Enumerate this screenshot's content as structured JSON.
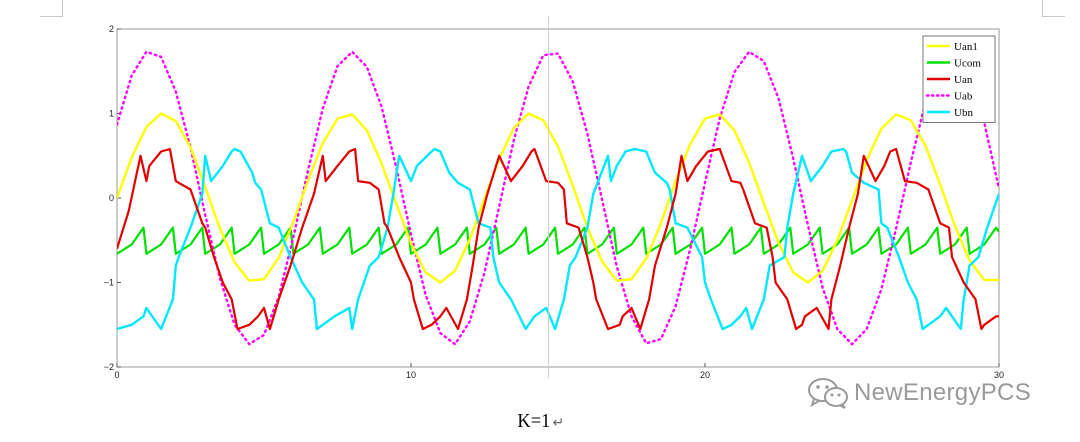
{
  "caption": {
    "text": "K=1",
    "mark": "↵"
  },
  "watermark": {
    "text": "NewEnergyPCS",
    "icon": "wechat-icon"
  },
  "chart_data": {
    "type": "line",
    "title": "",
    "xlabel": "",
    "ylabel": "",
    "xlim": [
      0,
      30
    ],
    "ylim": [
      -2,
      2
    ],
    "x_ticks": [
      0,
      10,
      20,
      30
    ],
    "y_ticks": [
      -2,
      -1,
      0,
      1,
      2
    ],
    "grid": false,
    "legend_position": "top-right",
    "series": [
      {
        "name": "Uan1",
        "color": "#ffff00",
        "style": "solid",
        "width": 2.4,
        "x": [
          0,
          0.5,
          1,
          1.5,
          2,
          2.5,
          3,
          3.5,
          4,
          4.5,
          5,
          5.5,
          6,
          6.5,
          7,
          7.5,
          8,
          8.5,
          9,
          9.5,
          10,
          10.5,
          11,
          11.5,
          12,
          12.5,
          13,
          13.5,
          14,
          14.5,
          15,
          15.5,
          16,
          16.5,
          17,
          17.5,
          18,
          18.5,
          19,
          19.5,
          20,
          20.5,
          21,
          21.5,
          22,
          22.5,
          23,
          23.5,
          24,
          24.5,
          25,
          25.5,
          26,
          26.5,
          27,
          27.5,
          28,
          28.5,
          29,
          29.5,
          30
        ],
        "y": [
          0.0,
          0.48,
          0.84,
          1.0,
          0.91,
          0.6,
          0.13,
          -0.36,
          -0.76,
          -0.98,
          -0.96,
          -0.71,
          -0.28,
          0.21,
          0.65,
          0.94,
          0.99,
          0.8,
          0.41,
          -0.07,
          -0.54,
          -0.88,
          -1.0,
          -0.86,
          -0.49,
          -0.01,
          0.46,
          0.83,
          1.0,
          0.92,
          0.61,
          0.15,
          -0.35,
          -0.75,
          -0.98,
          -0.96,
          -0.72,
          -0.3,
          0.2,
          0.64,
          0.94,
          0.99,
          0.8,
          0.42,
          -0.06,
          -0.53,
          -0.88,
          -1.0,
          -0.86,
          -0.5,
          -0.03,
          0.45,
          0.82,
          0.99,
          0.92,
          0.62,
          0.16,
          -0.33,
          -0.74,
          -0.97,
          -0.97
        ]
      },
      {
        "name": "Ucom",
        "color": "#00e000",
        "style": "solid",
        "width": 2.2,
        "x": [
          0,
          0.5,
          0.9,
          1.0,
          1.5,
          1.9,
          2.0,
          2.5,
          2.9,
          3.0,
          3.5,
          3.9,
          4.0,
          4.5,
          4.9,
          5.0,
          5.5,
          5.9,
          6.0,
          6.5,
          6.9,
          7.0,
          7.5,
          7.9,
          8.0,
          8.5,
          8.9,
          9.0,
          9.5,
          9.9,
          10.0,
          10.5,
          10.9,
          11.0,
          11.5,
          11.9,
          12.0,
          12.5,
          12.9,
          13.0,
          13.5,
          13.9,
          14.0,
          14.5,
          14.9,
          15.0,
          15.5,
          15.9,
          16.0,
          16.5,
          16.9,
          17.0,
          17.5,
          17.9,
          18.0,
          18.5,
          18.9,
          19.0,
          19.5,
          19.9,
          20.0,
          20.5,
          20.9,
          21.0,
          21.5,
          21.9,
          22.0,
          22.5,
          22.9,
          23.0,
          23.5,
          23.9,
          24.0,
          24.5,
          24.9,
          25.0,
          25.5,
          25.9,
          26.0,
          26.5,
          26.9,
          27.0,
          27.5,
          27.9,
          28.0,
          28.5,
          28.9,
          29.0,
          29.5,
          29.9,
          30.0
        ],
        "y": [
          -0.66,
          -0.55,
          -0.35,
          -0.66,
          -0.55,
          -0.35,
          -0.66,
          -0.55,
          -0.35,
          -0.66,
          -0.55,
          -0.35,
          -0.66,
          -0.55,
          -0.35,
          -0.66,
          -0.55,
          -0.35,
          -0.66,
          -0.55,
          -0.35,
          -0.66,
          -0.55,
          -0.35,
          -0.66,
          -0.55,
          -0.35,
          -0.66,
          -0.55,
          -0.35,
          -0.66,
          -0.55,
          -0.35,
          -0.66,
          -0.55,
          -0.35,
          -0.66,
          -0.55,
          -0.35,
          -0.66,
          -0.55,
          -0.35,
          -0.66,
          -0.55,
          -0.35,
          -0.66,
          -0.55,
          -0.35,
          -0.66,
          -0.55,
          -0.35,
          -0.66,
          -0.55,
          -0.35,
          -0.66,
          -0.55,
          -0.35,
          -0.66,
          -0.55,
          -0.35,
          -0.66,
          -0.55,
          -0.35,
          -0.66,
          -0.55,
          -0.35,
          -0.66,
          -0.55,
          -0.35,
          -0.66,
          -0.55,
          -0.35,
          -0.66,
          -0.55,
          -0.35,
          -0.66,
          -0.55,
          -0.35,
          -0.66,
          -0.55,
          -0.35,
          -0.66,
          -0.55,
          -0.35,
          -0.66,
          -0.55,
          -0.35,
          -0.66,
          -0.55,
          -0.35,
          -0.4
        ]
      },
      {
        "name": "Uan",
        "color": "#e00000",
        "style": "solid",
        "width": 2.2,
        "x": [
          0,
          0.4,
          0.8,
          1.0,
          1.1,
          1.5,
          1.8,
          2.0,
          2.1,
          2.5,
          2.9,
          3.0,
          3.3,
          3.6,
          3.9,
          4.1,
          4.5,
          4.8,
          5.0,
          5.2,
          5.5,
          5.9,
          6.3,
          6.7,
          7.0,
          7.1,
          7.5,
          7.9,
          8.1,
          8.2,
          8.6,
          8.9,
          9.1,
          9.2,
          9.6,
          10.0,
          10.1,
          10.4,
          10.7,
          11.0,
          11.2,
          11.6,
          11.9,
          12.1,
          12.3,
          12.6,
          13.0,
          13.4,
          13.8,
          14.1,
          14.2,
          14.6,
          15.0,
          15.2,
          15.3,
          15.7,
          16.0,
          16.2,
          16.3,
          16.7,
          17.1,
          17.2,
          17.5,
          17.8,
          18.1,
          18.3,
          18.7,
          19.0,
          19.2,
          19.4,
          19.7,
          20.1,
          20.5,
          20.9,
          21.2,
          21.3,
          21.7,
          22.1,
          22.3,
          22.4,
          22.8,
          23.1,
          23.3,
          23.4,
          23.8,
          24.2,
          24.3,
          24.6,
          24.9,
          25.2,
          25.4,
          25.8,
          26.1,
          26.3,
          26.5,
          26.8,
          27.2,
          27.6,
          28.0,
          28.3,
          28.4,
          28.8,
          29.2,
          29.4,
          29.5,
          29.9,
          30.0
        ],
        "y": [
          -0.6,
          -0.15,
          0.5,
          0.2,
          0.38,
          0.55,
          0.58,
          0.2,
          0.18,
          0.1,
          -0.3,
          -0.35,
          -0.7,
          -1.0,
          -1.2,
          -1.55,
          -1.5,
          -1.4,
          -1.3,
          -1.55,
          -1.2,
          -0.8,
          -0.35,
          0.05,
          0.5,
          0.2,
          0.38,
          0.55,
          0.58,
          0.2,
          0.18,
          0.1,
          -0.3,
          -0.35,
          -0.7,
          -1.0,
          -1.2,
          -1.55,
          -1.5,
          -1.4,
          -1.3,
          -1.55,
          -1.2,
          -0.8,
          -0.35,
          0.05,
          0.5,
          0.2,
          0.38,
          0.55,
          0.58,
          0.2,
          0.18,
          0.1,
          -0.3,
          -0.35,
          -0.7,
          -1.0,
          -1.2,
          -1.55,
          -1.5,
          -1.4,
          -1.3,
          -1.55,
          -1.2,
          -0.8,
          -0.35,
          0.05,
          0.5,
          0.2,
          0.38,
          0.55,
          0.58,
          0.2,
          0.18,
          0.1,
          -0.3,
          -0.35,
          -0.7,
          -1.0,
          -1.2,
          -1.55,
          -1.5,
          -1.4,
          -1.3,
          -1.55,
          -1.2,
          -0.8,
          -0.35,
          0.05,
          0.5,
          0.2,
          0.38,
          0.55,
          0.58,
          0.2,
          0.18,
          0.1,
          -0.3,
          -0.35,
          -0.7,
          -1.0,
          -1.2,
          -1.55,
          -1.5,
          -1.4,
          -1.4
        ]
      },
      {
        "name": "Uab",
        "color": "#ff00ff",
        "style": "dotted",
        "width": 2.4,
        "x": [
          0,
          0.5,
          1,
          1.5,
          2,
          2.5,
          3,
          3.5,
          4,
          4.5,
          5,
          5.5,
          6,
          6.5,
          7,
          7.5,
          8,
          8.5,
          9,
          9.5,
          10,
          10.5,
          11,
          11.5,
          12,
          12.5,
          13,
          13.5,
          14,
          14.5,
          15,
          15.5,
          16,
          16.5,
          17,
          17.5,
          18,
          18.5,
          19,
          19.5,
          20,
          20.5,
          21,
          21.5,
          22,
          22.5,
          23,
          23.5,
          24,
          24.5,
          25,
          25.5,
          26,
          26.5,
          27,
          27.5,
          28,
          28.5,
          29,
          29.5,
          30
        ],
        "y": [
          0.87,
          1.45,
          1.73,
          1.67,
          1.26,
          0.6,
          -0.2,
          -0.95,
          -1.5,
          -1.73,
          -1.62,
          -1.17,
          -0.46,
          0.33,
          1.06,
          1.56,
          1.73,
          1.55,
          1.08,
          0.36,
          -0.43,
          -1.15,
          -1.6,
          -1.73,
          -1.46,
          -0.88,
          -0.1,
          0.69,
          1.32,
          1.69,
          1.71,
          1.38,
          0.76,
          -0.02,
          -0.81,
          -1.4,
          -1.72,
          -1.67,
          -1.28,
          -0.6,
          0.18,
          0.94,
          1.49,
          1.73,
          1.62,
          1.18,
          0.47,
          -0.32,
          -1.06,
          -1.55,
          -1.73,
          -1.55,
          -1.08,
          -0.36,
          0.42,
          1.14,
          1.6,
          1.73,
          1.47,
          0.89,
          0.11
        ]
      },
      {
        "name": "Ubn",
        "color": "#00e8ff",
        "style": "solid",
        "width": 2.4,
        "x": [
          0,
          0.5,
          0.9,
          1.0,
          1.5,
          1.9,
          2.0,
          2.1,
          2.5,
          2.9,
          3.0,
          3.2,
          3.6,
          3.9,
          4.0,
          4.2,
          4.6,
          4.7,
          4.9,
          5.2,
          5.5,
          5.9,
          6.3,
          6.7,
          6.8,
          7.0,
          7.4,
          7.9,
          8.0,
          8.2,
          8.6,
          8.9,
          9.2,
          9.4,
          9.6,
          10.0,
          10.2,
          10.7,
          10.8,
          11.0,
          11.3,
          11.6,
          12.0,
          12.3,
          12.7,
          12.8,
          13.0,
          13.4,
          13.9,
          14.0,
          14.2,
          14.6,
          14.9,
          15.2,
          15.4,
          15.6,
          16.0,
          16.2,
          16.7,
          16.8,
          17.0,
          17.3,
          17.6,
          18.0,
          18.3,
          18.7,
          18.8,
          19.0,
          19.4,
          19.9,
          20.0,
          20.2,
          20.6,
          20.9,
          21.2,
          21.4,
          21.6,
          22.0,
          22.2,
          22.7,
          22.8,
          23.0,
          23.3,
          23.6,
          24.0,
          24.3,
          24.7,
          24.8,
          25.0,
          25.4,
          25.9,
          26.0,
          26.2,
          26.6,
          26.9,
          27.2,
          27.4,
          27.6,
          28.0,
          28.2,
          28.7,
          28.8,
          29.0,
          29.3,
          29.6,
          30.0
        ],
        "y": [
          -1.55,
          -1.5,
          -1.4,
          -1.3,
          -1.55,
          -1.2,
          -0.8,
          -0.7,
          -0.35,
          0.05,
          0.5,
          0.2,
          0.38,
          0.55,
          0.58,
          0.55,
          0.3,
          0.18,
          0.1,
          -0.3,
          -0.35,
          -0.7,
          -1.0,
          -1.2,
          -1.55,
          -1.5,
          -1.4,
          -1.3,
          -1.55,
          -1.2,
          -0.8,
          -0.7,
          -0.35,
          0.05,
          0.5,
          0.2,
          0.38,
          0.55,
          0.58,
          0.55,
          0.3,
          0.18,
          0.1,
          -0.3,
          -0.35,
          -0.7,
          -1.0,
          -1.2,
          -1.55,
          -1.5,
          -1.4,
          -1.3,
          -1.55,
          -1.2,
          -0.8,
          -0.7,
          -0.35,
          0.05,
          0.5,
          0.2,
          0.38,
          0.55,
          0.58,
          0.55,
          0.3,
          0.18,
          0.1,
          -0.3,
          -0.35,
          -0.7,
          -1.0,
          -1.2,
          -1.55,
          -1.5,
          -1.4,
          -1.3,
          -1.55,
          -1.2,
          -0.8,
          -0.7,
          -0.35,
          0.05,
          0.5,
          0.2,
          0.38,
          0.55,
          0.58,
          0.55,
          0.3,
          0.18,
          0.1,
          -0.3,
          -0.35,
          -0.7,
          -1.0,
          -1.2,
          -1.55,
          -1.5,
          -1.4,
          -1.3,
          -1.55,
          -1.2,
          -0.8,
          -0.7,
          -0.35,
          0.05
        ]
      }
    ]
  }
}
